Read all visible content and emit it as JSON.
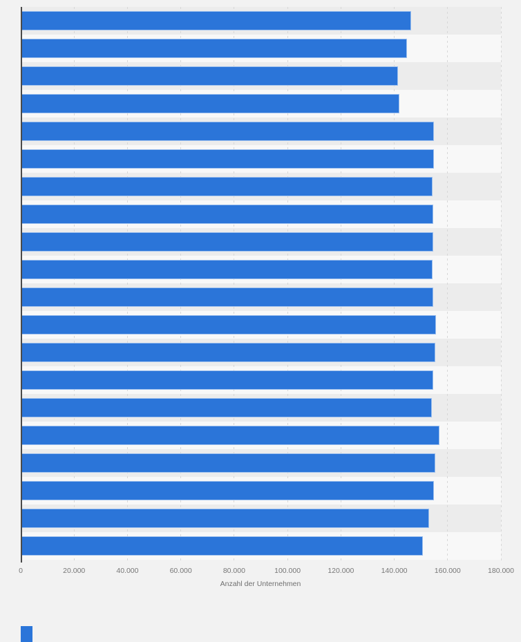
{
  "chart_data": {
    "type": "bar",
    "orientation": "horizontal",
    "title": "",
    "xlabel": "Anzahl der Unternehmen",
    "ylabel": "",
    "xlim": [
      0,
      180000
    ],
    "x_tick_values": [
      0,
      20000,
      40000,
      60000,
      80000,
      100000,
      120000,
      140000,
      160000,
      180000
    ],
    "x_tick_labels": [
      "0",
      "20.000",
      "40.000",
      "60.000",
      "80.000",
      "100.000",
      "120.000",
      "140.000",
      "160.000",
      "180.000"
    ],
    "categories": [
      "",
      "",
      "",
      "",
      "",
      "",
      "",
      "",
      "",
      "",
      "",
      "",
      "",
      "",
      "",
      "",
      "",
      "",
      "",
      ""
    ],
    "category_labels_visible": false,
    "values": [
      146400,
      144800,
      141500,
      142000,
      154900,
      154900,
      154400,
      154600,
      154600,
      154400,
      154600,
      155700,
      155400,
      154600,
      154100,
      157000,
      155400,
      154900,
      153100,
      150800
    ],
    "grid": "vertical-dashed",
    "legend_position": "none",
    "bar_color": "#2b75d9"
  },
  "colors": {
    "background": "#f2f2f2",
    "row_stripe_dark": "#ececec",
    "row_stripe_light": "#f8f8f8",
    "bar": "#2b75d9",
    "axis_line": "#4a4a4a",
    "gridline": "#d7d7d7",
    "tick_label": "#767676",
    "axis_title": "#6f6f6f"
  }
}
